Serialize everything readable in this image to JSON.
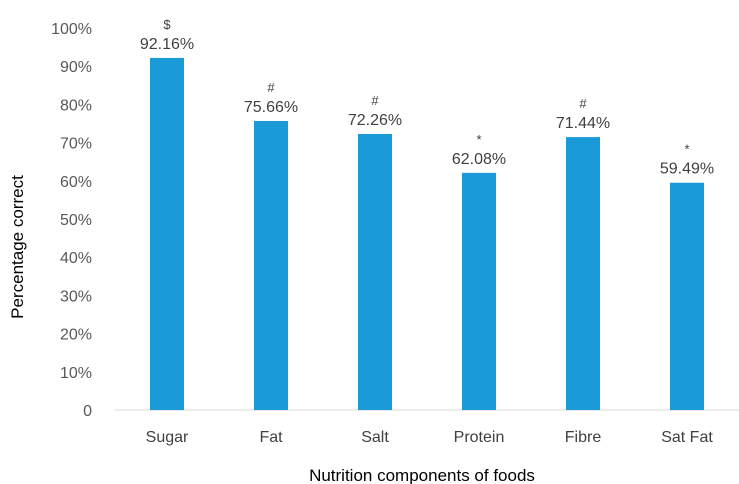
{
  "chart_data": {
    "type": "bar",
    "title": "",
    "xlabel": "Nutrition components of foods",
    "ylabel": "Percentage correct",
    "categories": [
      "Sugar",
      "Fat",
      "Salt",
      "Protein",
      "Fibre",
      "Sat Fat"
    ],
    "values": [
      92.16,
      75.66,
      72.26,
      62.08,
      71.44,
      59.49
    ],
    "data_labels": [
      "92.16%",
      "75.66%",
      "72.26%",
      "62.08%",
      "71.44%",
      "59.49%"
    ],
    "significance_markers": [
      "$",
      "#",
      "#",
      "*",
      "#",
      "*"
    ],
    "yticks": [
      "0",
      "10%",
      "20%",
      "30%",
      "40%",
      "50%",
      "60%",
      "70%",
      "80%",
      "90%",
      "100%"
    ],
    "ylim": [
      0,
      100
    ],
    "grid": false,
    "legend": "none",
    "bar_color": "#1a9ad6",
    "axis_color": "#d9d9d9"
  }
}
